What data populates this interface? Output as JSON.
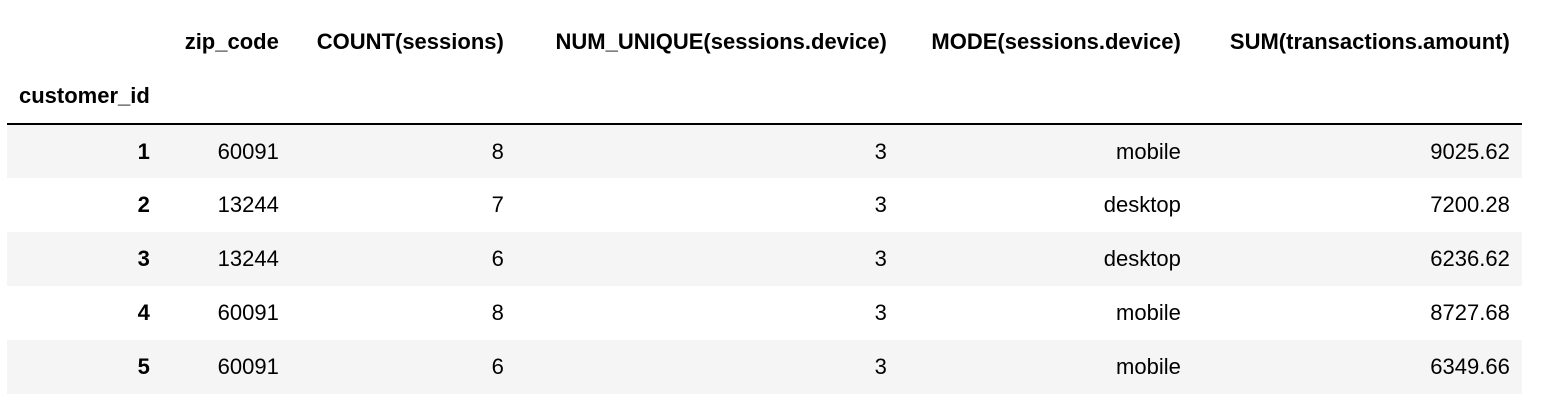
{
  "table": {
    "index_name": "customer_id",
    "columns": [
      "zip_code",
      "COUNT(sessions)",
      "NUM_UNIQUE(sessions.device)",
      "MODE(sessions.device)",
      "SUM(transactions.amount)"
    ],
    "rows": [
      {
        "index": "1",
        "cells": [
          "60091",
          "8",
          "3",
          "mobile",
          "9025.62"
        ]
      },
      {
        "index": "2",
        "cells": [
          "13244",
          "7",
          "3",
          "desktop",
          "7200.28"
        ]
      },
      {
        "index": "3",
        "cells": [
          "13244",
          "6",
          "3",
          "desktop",
          "6236.62"
        ]
      },
      {
        "index": "4",
        "cells": [
          "60091",
          "8",
          "3",
          "mobile",
          "8727.68"
        ]
      },
      {
        "index": "5",
        "cells": [
          "60091",
          "6",
          "3",
          "mobile",
          "6349.66"
        ]
      }
    ]
  }
}
